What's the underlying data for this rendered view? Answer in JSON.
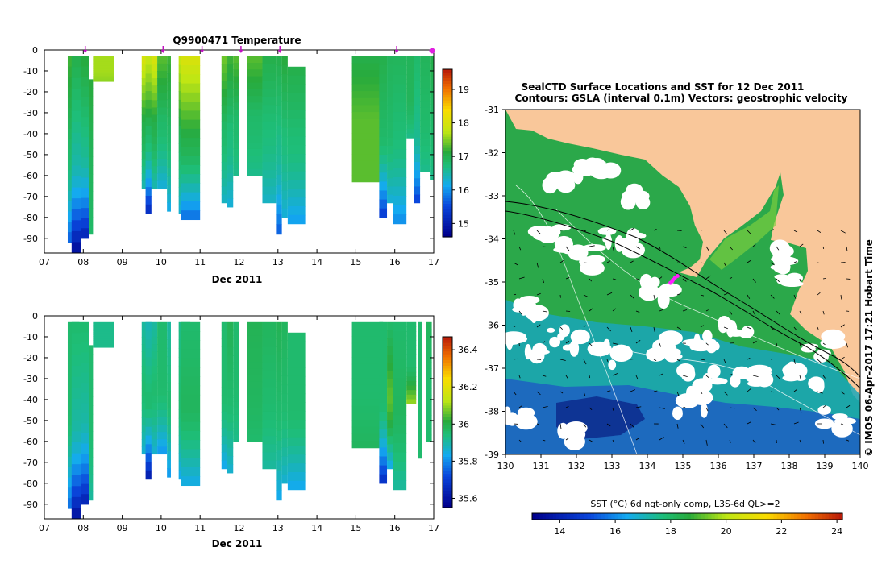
{
  "chart_data": [
    {
      "type": "heatmap",
      "title": "Q9900471  Temperature",
      "xlabel": "Dec 2011",
      "ylabel": "",
      "x_ticks": [
        "07",
        "08",
        "09",
        "10",
        "11",
        "12",
        "13",
        "14",
        "15",
        "16",
        "17"
      ],
      "x_range": [
        7,
        17
      ],
      "y_ticks": [
        "0",
        "-10",
        "-20",
        "-30",
        "-40",
        "-50",
        "-60",
        "-70",
        "-80",
        "-90"
      ],
      "y_range": [
        -97,
        0
      ],
      "profile_markers_day": [
        8.05,
        10.05,
        11.05,
        12.05,
        13.05,
        16.05,
        17.05
      ],
      "colorbar": {
        "ticks": [
          "15",
          "16",
          "17",
          "18",
          "19"
        ],
        "range": [
          14.6,
          19.6
        ]
      },
      "columns": [
        {
          "x0": 7.6,
          "x1": 7.9,
          "ztop": -3,
          "zbot": -92,
          "top": 17.2,
          "mid": 16.8,
          "bot": 15.6
        },
        {
          "x0": 7.7,
          "x1": 7.95,
          "ztop": -3,
          "zbot": -97,
          "top": 17.0,
          "mid": 16.5,
          "bot": 14.7
        },
        {
          "x0": 7.95,
          "x1": 8.15,
          "ztop": -3,
          "zbot": -90,
          "top": 17.1,
          "mid": 16.6,
          "bot": 15.0
        },
        {
          "x0": 8.15,
          "x1": 8.25,
          "ztop": -14,
          "zbot": -88,
          "top": 17.1,
          "mid": 16.9,
          "bot": 16.8
        },
        {
          "x0": 8.25,
          "x1": 8.8,
          "ztop": -3,
          "zbot": -15,
          "top": 17.6,
          "mid": 17.6,
          "bot": 17.5
        },
        {
          "x0": 9.5,
          "x1": 9.9,
          "ztop": -3,
          "zbot": -66,
          "top": 18.0,
          "mid": 17.0,
          "bot": 16.4
        },
        {
          "x0": 9.6,
          "x1": 9.75,
          "ztop": -3,
          "zbot": -78,
          "top": 17.8,
          "mid": 16.8,
          "bot": 15.1
        },
        {
          "x0": 9.9,
          "x1": 10.15,
          "ztop": -3,
          "zbot": -66,
          "top": 17.3,
          "mid": 16.8,
          "bot": 16.2
        },
        {
          "x0": 10.15,
          "x1": 10.25,
          "ztop": -3,
          "zbot": -77,
          "top": 17.2,
          "mid": 16.8,
          "bot": 16.1
        },
        {
          "x0": 10.45,
          "x1": 10.75,
          "ztop": -3,
          "zbot": -78,
          "top": 17.8,
          "mid": 16.9,
          "bot": 16.2
        },
        {
          "x0": 10.5,
          "x1": 11.0,
          "ztop": -3,
          "zbot": -81,
          "top": 18.0,
          "mid": 17.0,
          "bot": 15.7
        },
        {
          "x0": 11.55,
          "x1": 11.7,
          "ztop": -3,
          "zbot": -73,
          "top": 17.4,
          "mid": 16.8,
          "bot": 16.3
        },
        {
          "x0": 11.7,
          "x1": 11.85,
          "ztop": -3,
          "zbot": -75,
          "top": 17.2,
          "mid": 16.7,
          "bot": 16.2
        },
        {
          "x0": 11.85,
          "x1": 12.0,
          "ztop": -3,
          "zbot": -60,
          "top": 17.3,
          "mid": 16.8,
          "bot": 16.6
        },
        {
          "x0": 12.2,
          "x1": 12.6,
          "ztop": -3,
          "zbot": -60,
          "top": 17.3,
          "mid": 16.8,
          "bot": 16.6
        },
        {
          "x0": 12.6,
          "x1": 12.95,
          "ztop": -3,
          "zbot": -73,
          "top": 17.0,
          "mid": 16.7,
          "bot": 16.3
        },
        {
          "x0": 12.95,
          "x1": 13.1,
          "ztop": -3,
          "zbot": -88,
          "top": 17.0,
          "mid": 16.6,
          "bot": 15.6
        },
        {
          "x0": 13.1,
          "x1": 13.25,
          "ztop": -3,
          "zbot": -80,
          "top": 17.1,
          "mid": 16.7,
          "bot": 16.2
        },
        {
          "x0": 13.25,
          "x1": 13.7,
          "ztop": -8,
          "zbot": -83,
          "top": 17.0,
          "mid": 16.7,
          "bot": 16.0
        },
        {
          "x0": 14.9,
          "x1": 15.7,
          "ztop": -3,
          "zbot": -63,
          "top": 17.0,
          "mid": 17.3,
          "bot": 17.3
        },
        {
          "x0": 15.6,
          "x1": 15.8,
          "ztop": -3,
          "zbot": -80,
          "top": 17.0,
          "mid": 16.8,
          "bot": 15.3
        },
        {
          "x0": 15.8,
          "x1": 15.95,
          "ztop": -3,
          "zbot": -73,
          "top": 16.9,
          "mid": 16.8,
          "bot": 16.2
        },
        {
          "x0": 15.95,
          "x1": 16.3,
          "ztop": -3,
          "zbot": -83,
          "top": 16.9,
          "mid": 16.7,
          "bot": 15.9
        },
        {
          "x0": 16.3,
          "x1": 16.55,
          "ztop": -3,
          "zbot": -42,
          "top": 16.9,
          "mid": 16.9,
          "bot": 16.6
        },
        {
          "x0": 16.5,
          "x1": 16.65,
          "ztop": -3,
          "zbot": -73,
          "top": 16.8,
          "mid": 16.6,
          "bot": 15.4
        },
        {
          "x0": 16.65,
          "x1": 16.9,
          "ztop": -3,
          "zbot": -58,
          "top": 16.9,
          "mid": 16.8,
          "bot": 16.6
        },
        {
          "x0": 16.9,
          "x1": 17.1,
          "ztop": -3,
          "zbot": -62,
          "top": 17.0,
          "mid": 16.8,
          "bot": 16.6
        }
      ]
    },
    {
      "type": "heatmap",
      "title": "",
      "xlabel": "Dec 2011",
      "ylabel": "",
      "x_ticks": [
        "07",
        "08",
        "09",
        "10",
        "11",
        "12",
        "13",
        "14",
        "15",
        "16",
        "17"
      ],
      "x_range": [
        7,
        17
      ],
      "y_ticks": [
        "0",
        "-10",
        "-20",
        "-30",
        "-40",
        "-50",
        "-60",
        "-70",
        "-80",
        "-90"
      ],
      "y_range": [
        -97,
        0
      ],
      "colorbar": {
        "ticks": [
          "35.6",
          "35.8",
          "36",
          "36.2",
          "36.4"
        ],
        "range": [
          35.55,
          36.47
        ]
      },
      "columns": [
        {
          "x0": 7.6,
          "x1": 7.9,
          "ztop": -3,
          "zbot": -92,
          "top": 35.95,
          "mid": 35.95,
          "bot": 35.75
        },
        {
          "x0": 7.7,
          "x1": 7.95,
          "ztop": -3,
          "zbot": -97,
          "top": 35.95,
          "mid": 35.9,
          "bot": 35.58
        },
        {
          "x0": 7.95,
          "x1": 8.15,
          "ztop": -3,
          "zbot": -90,
          "top": 35.95,
          "mid": 35.9,
          "bot": 35.62
        },
        {
          "x0": 8.15,
          "x1": 8.25,
          "ztop": -14,
          "zbot": -88,
          "top": 35.95,
          "mid": 35.95,
          "bot": 35.9
        },
        {
          "x0": 8.25,
          "x1": 8.8,
          "ztop": -3,
          "zbot": -15,
          "top": 35.92,
          "mid": 35.92,
          "bot": 35.92
        },
        {
          "x0": 9.5,
          "x1": 9.9,
          "ztop": -3,
          "zbot": -66,
          "top": 35.9,
          "mid": 35.95,
          "bot": 35.85
        },
        {
          "x0": 9.6,
          "x1": 9.75,
          "ztop": -3,
          "zbot": -78,
          "top": 35.88,
          "mid": 35.95,
          "bot": 35.6
        },
        {
          "x0": 9.9,
          "x1": 10.15,
          "ztop": -3,
          "zbot": -66,
          "top": 35.95,
          "mid": 35.95,
          "bot": 35.8
        },
        {
          "x0": 10.15,
          "x1": 10.25,
          "ztop": -3,
          "zbot": -77,
          "top": 35.9,
          "mid": 35.95,
          "bot": 35.8
        },
        {
          "x0": 10.45,
          "x1": 10.75,
          "ztop": -3,
          "zbot": -78,
          "top": 35.92,
          "mid": 35.95,
          "bot": 35.82
        },
        {
          "x0": 10.5,
          "x1": 11.0,
          "ztop": -3,
          "zbot": -81,
          "top": 35.95,
          "mid": 35.97,
          "bot": 35.83
        },
        {
          "x0": 11.55,
          "x1": 11.7,
          "ztop": -3,
          "zbot": -73,
          "top": 35.95,
          "mid": 35.95,
          "bot": 35.82
        },
        {
          "x0": 11.7,
          "x1": 11.85,
          "ztop": -3,
          "zbot": -75,
          "top": 35.98,
          "mid": 35.95,
          "bot": 35.85
        },
        {
          "x0": 11.85,
          "x1": 12.0,
          "ztop": -3,
          "zbot": -60,
          "top": 35.95,
          "mid": 35.95,
          "bot": 35.92
        },
        {
          "x0": 12.2,
          "x1": 12.6,
          "ztop": -3,
          "zbot": -60,
          "top": 35.98,
          "mid": 35.97,
          "bot": 35.95
        },
        {
          "x0": 12.6,
          "x1": 12.95,
          "ztop": -3,
          "zbot": -73,
          "top": 35.97,
          "mid": 35.95,
          "bot": 35.9
        },
        {
          "x0": 12.95,
          "x1": 13.1,
          "ztop": -3,
          "zbot": -88,
          "top": 35.98,
          "mid": 35.95,
          "bot": 35.82
        },
        {
          "x0": 13.1,
          "x1": 13.25,
          "ztop": -3,
          "zbot": -80,
          "top": 35.97,
          "mid": 35.95,
          "bot": 35.85
        },
        {
          "x0": 13.25,
          "x1": 13.7,
          "ztop": -8,
          "zbot": -83,
          "top": 35.95,
          "mid": 35.95,
          "bot": 35.82
        },
        {
          "x0": 14.9,
          "x1": 15.7,
          "ztop": -3,
          "zbot": -63,
          "top": 35.95,
          "mid": 35.95,
          "bot": 35.97
        },
        {
          "x0": 15.6,
          "x1": 15.8,
          "ztop": -3,
          "zbot": -80,
          "top": 35.95,
          "mid": 35.95,
          "bot": 35.65
        },
        {
          "x0": 15.8,
          "x1": 15.95,
          "ztop": -3,
          "zbot": -73,
          "top": 35.95,
          "mid": 36.05,
          "bot": 35.82
        },
        {
          "x0": 15.95,
          "x1": 16.3,
          "ztop": -3,
          "zbot": -83,
          "top": 35.95,
          "mid": 35.97,
          "bot": 35.9
        },
        {
          "x0": 16.3,
          "x1": 16.55,
          "ztop": -3,
          "zbot": -42,
          "top": 35.95,
          "mid": 35.95,
          "bot": 36.1
        },
        {
          "x0": 16.6,
          "x1": 16.7,
          "ztop": -3,
          "zbot": -68,
          "top": 35.95,
          "mid": 35.95,
          "bot": 35.95
        },
        {
          "x0": 16.8,
          "x1": 16.95,
          "ztop": -3,
          "zbot": -60,
          "top": 35.97,
          "mid": 35.95,
          "bot": 35.95
        }
      ]
    },
    {
      "type": "heatmap",
      "title": "SealCTD Surface Locations and SST for 12 Dec 2011",
      "subtitle": "Contours: GSLA (interval 0.1m) Vectors: geostrophic velocity",
      "xlabel": "",
      "ylabel": "",
      "x_ticks": [
        "130",
        "131",
        "132",
        "133",
        "134",
        "135",
        "136",
        "137",
        "138",
        "139",
        "140"
      ],
      "x_range": [
        130,
        140
      ],
      "y_ticks": [
        "-31",
        "-32",
        "-33",
        "-34",
        "-35",
        "-36",
        "-37",
        "-38",
        "-39"
      ],
      "y_range": [
        -39,
        -31
      ],
      "colorbar": {
        "label": "SST (°C) 6d ngt-only comp, L3S-6d QL>=2",
        "ticks": [
          "14",
          "16",
          "18",
          "20",
          "22",
          "24"
        ],
        "range": [
          13,
          24.2
        ]
      },
      "seal_locations": [
        [
          134.65,
          -35.02
        ],
        [
          134.72,
          -34.95
        ],
        [
          134.78,
          -34.9
        ],
        [
          134.85,
          -34.86
        ],
        [
          134.7,
          -34.98
        ]
      ],
      "side_label": "© IMOS 06-Apr-2017 17:21 Hobart Time"
    }
  ]
}
